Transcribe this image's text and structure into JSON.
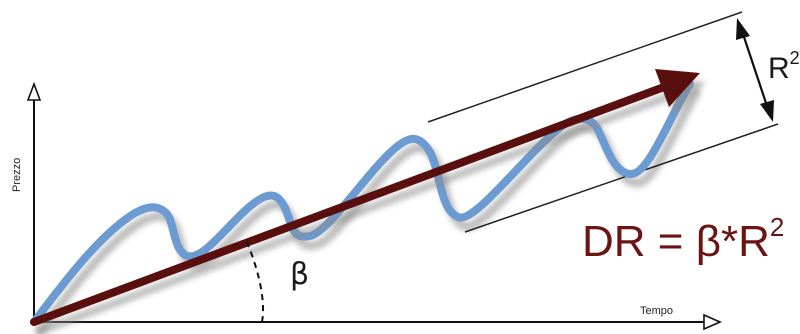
{
  "axes": {
    "y_label": "Prezzo",
    "x_label": "Tempo"
  },
  "angle_label": "β",
  "channel_label": "R",
  "channel_label_superscript": "2",
  "formula": "DR = β*R",
  "formula_superscript": "2",
  "colors": {
    "price_line": "#6b9bd1",
    "trend_arrow": "#5a0f0f",
    "formula": "#6a1414",
    "axes": "#111111",
    "shadow": "#9a9a9a"
  }
}
